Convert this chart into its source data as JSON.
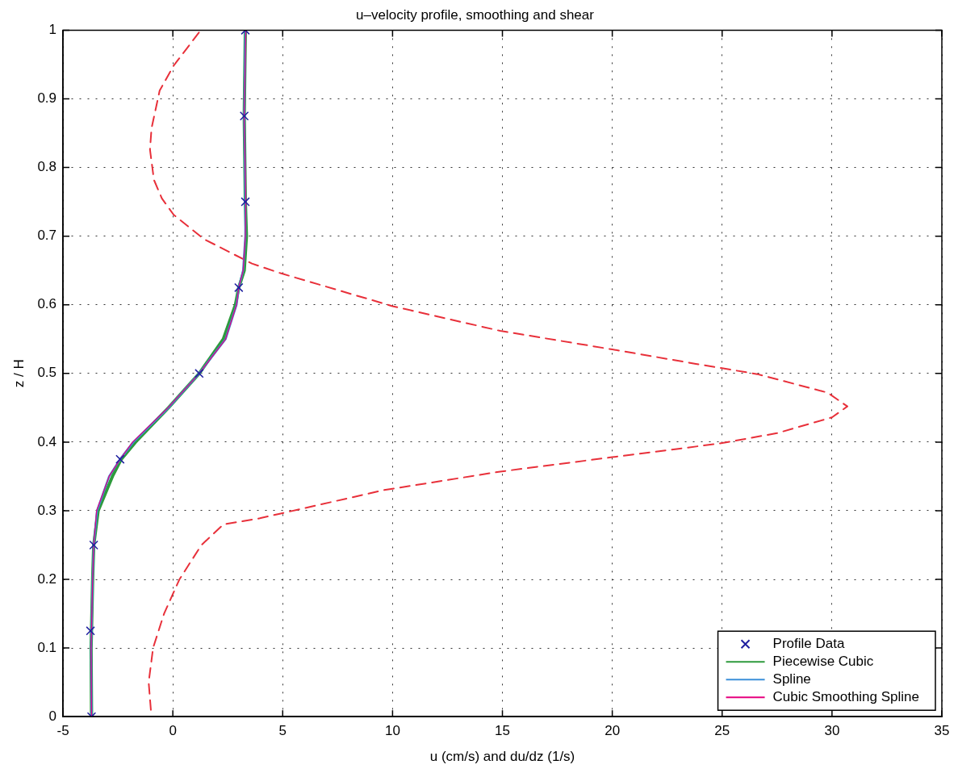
{
  "chart_data": {
    "type": "line",
    "title": "u–velocity profile, smoothing and shear",
    "xlabel": "u (cm/s) and du/dz (1/s)",
    "ylabel": "z / H",
    "xlim": [
      -5,
      35
    ],
    "xticks": [
      -5,
      0,
      5,
      10,
      15,
      20,
      25,
      30,
      35
    ],
    "ylim": [
      0,
      1
    ],
    "yticks": [
      0,
      0.1,
      0.2,
      0.3,
      0.4,
      0.5,
      0.6,
      0.7,
      0.8,
      0.9,
      1
    ],
    "grid": true,
    "legend": "bottom right",
    "series": [
      {
        "name": "Profile Data",
        "type": "scatter",
        "marker": "cross",
        "color": "#1f1fa0",
        "x": [
          -3.7,
          -3.75,
          -3.6,
          -2.4,
          1.2,
          3.0,
          3.3,
          3.25,
          3.3
        ],
        "values": [
          0,
          0.125,
          0.25,
          0.375,
          0.5,
          0.625,
          0.75,
          0.875,
          1
        ]
      },
      {
        "name": "Piecewise Cubic",
        "color": "#2e9a3c",
        "x": [
          -3.7,
          -3.72,
          -3.65,
          -3.6,
          -3.4,
          -2.75,
          -2.35,
          -1.7,
          -0.2,
          1.2,
          2.3,
          2.85,
          3.0,
          3.25,
          3.35,
          3.3,
          3.25,
          3.3
        ],
        "values": [
          0,
          0.1,
          0.2,
          0.25,
          0.3,
          0.35,
          0.375,
          0.4,
          0.45,
          0.5,
          0.55,
          0.6,
          0.625,
          0.65,
          0.7,
          0.75,
          0.875,
          1
        ]
      },
      {
        "name": "Spline",
        "color": "#3b8fd9",
        "x": [
          -3.7,
          -3.72,
          -3.65,
          -3.6,
          -3.45,
          -2.9,
          -2.4,
          -1.8,
          -0.2,
          1.2,
          2.4,
          2.9,
          3.0,
          3.2,
          3.3,
          3.3,
          3.25,
          3.3
        ],
        "values": [
          0,
          0.1,
          0.2,
          0.25,
          0.3,
          0.35,
          0.375,
          0.4,
          0.45,
          0.5,
          0.55,
          0.6,
          0.625,
          0.65,
          0.7,
          0.75,
          0.875,
          1
        ]
      },
      {
        "name": "Cubic Smoothing Spline",
        "color": "#e6007e",
        "x": [
          -3.7,
          -3.72,
          -3.65,
          -3.6,
          -3.47,
          -2.9,
          -2.4,
          -1.83,
          -0.22,
          1.2,
          2.4,
          2.9,
          3.0,
          3.2,
          3.3,
          3.32,
          3.25,
          3.32
        ],
        "values": [
          0,
          0.1,
          0.2,
          0.25,
          0.3,
          0.35,
          0.375,
          0.4,
          0.45,
          0.5,
          0.55,
          0.6,
          0.625,
          0.65,
          0.7,
          0.75,
          0.875,
          1
        ]
      },
      {
        "line_style": "dashed",
        "color": "#e8303a",
        "x": [
          -1.0,
          -1.1,
          -0.9,
          -0.4,
          0.3,
          1.3,
          2.3,
          3.96,
          9.6,
          14.9,
          20.0,
          24.9,
          27.5,
          30.0,
          30.7,
          29.8,
          26.6,
          23.8,
          20.0,
          14.9,
          10.0,
          4.9,
          3.6,
          1.4,
          0.04,
          -0.5,
          -0.86,
          -1.04,
          -0.97,
          -0.6,
          0.03,
          1.27
        ],
        "values": [
          0.01,
          0.05,
          0.1,
          0.15,
          0.2,
          0.25,
          0.28,
          0.289,
          0.33,
          0.357,
          0.378,
          0.398,
          0.413,
          0.436,
          0.452,
          0.472,
          0.499,
          0.514,
          0.535,
          0.562,
          0.598,
          0.646,
          0.66,
          0.696,
          0.731,
          0.755,
          0.782,
          0.826,
          0.857,
          0.912,
          0.948,
          1.0
        ]
      }
    ]
  }
}
